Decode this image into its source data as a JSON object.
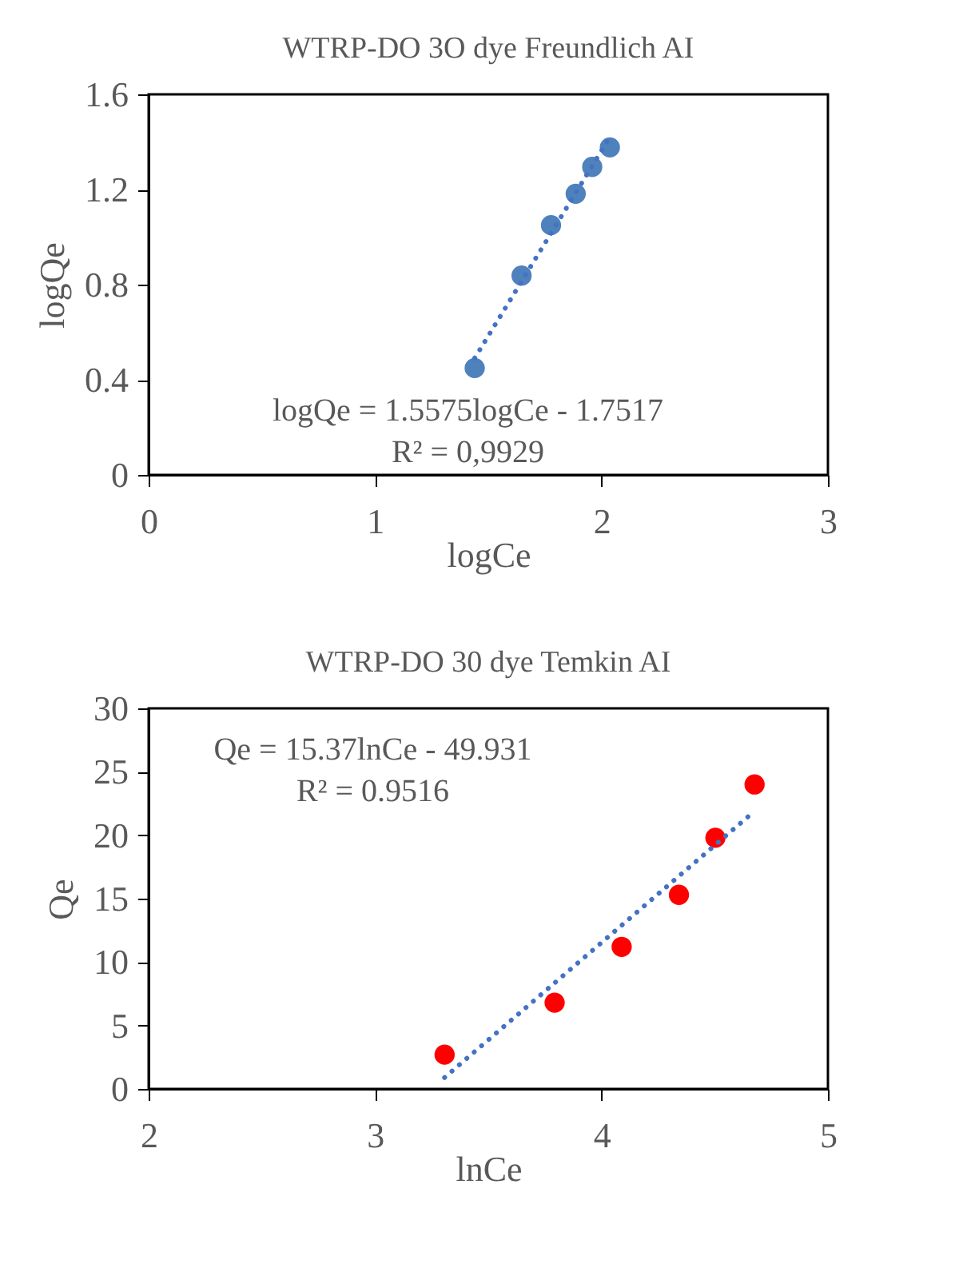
{
  "chart_data": [
    {
      "type": "scatter",
      "title": "WTRP-DO 3O dye Freundlich AI",
      "xlabel": "logCe",
      "ylabel": "logQe",
      "xlim": [
        0,
        3
      ],
      "xticks": [
        0,
        1,
        2,
        3
      ],
      "ylim": [
        0,
        1.6
      ],
      "yticks": [
        {
          "value": 0,
          "label": "0"
        },
        {
          "value": 0.4,
          "label": "0.4"
        },
        {
          "value": 0.8,
          "label": "0.8"
        },
        {
          "value": 1.2,
          "label": "1.2"
        },
        {
          "value": 1.6,
          "label": "1.6"
        }
      ],
      "grid": false,
      "marker": "circle",
      "annotations": [
        "logQe = 1.5575logCe - 1.7517",
        "R² = 0,9929"
      ],
      "series": [
        {
          "color": "#4f81bd",
          "x": [
            1.44,
            1.647,
            1.777,
            1.886,
            1.959,
            2.037
          ],
          "values": [
            0.449,
            0.838,
            1.05,
            1.182,
            1.295,
            1.377
          ]
        },
        {
          "type": "line",
          "color": "#4472c4",
          "line_style": "dotted",
          "marker": "none",
          "x": [
            1.44,
            2.037
          ],
          "values": [
            0.491,
            1.421
          ]
        }
      ]
    },
    {
      "type": "scatter",
      "title": "WTRP-DO 30 dye Temkin AI",
      "xlabel": "lnCe",
      "ylabel": "Qe",
      "xlim": [
        2,
        5
      ],
      "xticks": [
        2,
        3,
        4,
        5
      ],
      "ylim": [
        0,
        30
      ],
      "yticks": [
        0,
        5,
        10,
        15,
        20,
        25,
        30
      ],
      "grid": false,
      "marker": "circle",
      "annotations": [
        "Qe = 15.37lnCe - 49.931",
        "R² = 0.9516"
      ],
      "series": [
        {
          "color": "#ff0000",
          "x": [
            3.307,
            3.793,
            4.089,
            4.342,
            4.503,
            4.676
          ],
          "values": [
            2.7,
            6.8,
            11.2,
            15.3,
            19.8,
            24.0
          ]
        },
        {
          "type": "line",
          "color": "#4472c4",
          "line_style": "dotted",
          "marker": "none",
          "x": [
            3.307,
            4.676
          ],
          "values": [
            0.9,
            21.9
          ]
        }
      ]
    }
  ]
}
